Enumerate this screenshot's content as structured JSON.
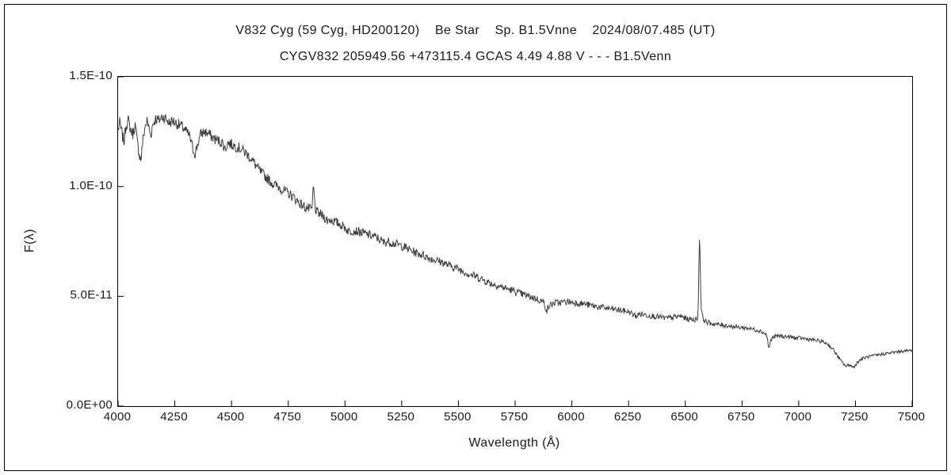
{
  "page": {
    "background": "#ffffff",
    "border_color": "#000000"
  },
  "chart_data": {
    "type": "line",
    "title": "V832 Cyg (59 Cyg, HD200120)    Be Star    Sp. B1.5Vnne    2024/08/07.485 (UT)",
    "subtitle": "CYGV832 205949.56 +473115.4 GCAS 4.49 4.88 V - - - B1.5Venn",
    "xlabel": "Wavelength (Å)",
    "ylabel": "F(λ)",
    "xlim": [
      4000,
      7500
    ],
    "ylim": [
      0,
      1.5e-10
    ],
    "grid": false,
    "legend": "none",
    "line_color": "#3d3d3d",
    "axis_color": "#000000",
    "flux_scale": 1e-11,
    "sample_step": 2.5,
    "noise": {
      "blue_amp": 0.28,
      "red_amp": 0.06
    },
    "x_ticks": [
      4000,
      4250,
      4500,
      4750,
      5000,
      5250,
      5500,
      5750,
      6000,
      6250,
      6500,
      6750,
      7000,
      7250,
      7500
    ],
    "y_ticks": [
      {
        "value": 0.0,
        "label": "0.0E+00"
      },
      {
        "value": 5e-11,
        "label": "5.0E-11"
      },
      {
        "value": 1e-10,
        "label": "1.0E-10"
      },
      {
        "value": 1.5e-10,
        "label": "1.5E-10"
      }
    ],
    "features": [
      {
        "wavelength": 4101,
        "kind": "absorption"
      },
      {
        "wavelength": 4340,
        "kind": "absorption"
      },
      {
        "wavelength": 4861,
        "kind": "emission"
      },
      {
        "wavelength": 5890,
        "kind": "absorption"
      },
      {
        "wavelength": 6563,
        "kind": "emission"
      },
      {
        "wavelength": 6868,
        "kind": "absorption"
      },
      {
        "wavelength": 7210,
        "kind": "absorption-band"
      }
    ],
    "series": [
      {
        "name": "spectrum",
        "points": [
          [
            4000,
            12.6
          ],
          [
            4008,
            12.9
          ],
          [
            4015,
            12.5
          ],
          [
            4022,
            12.2
          ],
          [
            4026,
            12.0
          ],
          [
            4034,
            12.8
          ],
          [
            4045,
            13.0
          ],
          [
            4055,
            12.6
          ],
          [
            4065,
            12.4
          ],
          [
            4075,
            12.8
          ],
          [
            4085,
            12.0
          ],
          [
            4095,
            11.4
          ],
          [
            4101,
            11.2
          ],
          [
            4108,
            12.0
          ],
          [
            4118,
            12.7
          ],
          [
            4128,
            13.0
          ],
          [
            4138,
            12.6
          ],
          [
            4144,
            12.3
          ],
          [
            4152,
            12.8
          ],
          [
            4165,
            13.1
          ],
          [
            4180,
            13.0
          ],
          [
            4195,
            13.2
          ],
          [
            4210,
            13.1
          ],
          [
            4225,
            12.9
          ],
          [
            4240,
            13.0
          ],
          [
            4255,
            12.9
          ],
          [
            4270,
            12.8
          ],
          [
            4285,
            12.7
          ],
          [
            4300,
            12.5
          ],
          [
            4315,
            12.3
          ],
          [
            4330,
            11.7
          ],
          [
            4340,
            11.5
          ],
          [
            4350,
            11.9
          ],
          [
            4365,
            12.4
          ],
          [
            4380,
            12.5
          ],
          [
            4400,
            12.4
          ],
          [
            4420,
            12.2
          ],
          [
            4440,
            12.1
          ],
          [
            4460,
            12.0
          ],
          [
            4471,
            11.7
          ],
          [
            4485,
            12.0
          ],
          [
            4505,
            11.9
          ],
          [
            4525,
            11.8
          ],
          [
            4545,
            11.7
          ],
          [
            4565,
            11.5
          ],
          [
            4585,
            11.3
          ],
          [
            4605,
            11.0
          ],
          [
            4625,
            10.7
          ],
          [
            4645,
            10.5
          ],
          [
            4665,
            10.3
          ],
          [
            4686,
            10.1
          ],
          [
            4705,
            10.0
          ],
          [
            4725,
            9.85
          ],
          [
            4750,
            9.7
          ],
          [
            4775,
            9.5
          ],
          [
            4800,
            9.25
          ],
          [
            4825,
            9.05
          ],
          [
            4850,
            8.95
          ],
          [
            4856,
            9.0
          ],
          [
            4859,
            9.9
          ],
          [
            4862,
            10.0
          ],
          [
            4866,
            9.3
          ],
          [
            4872,
            8.85
          ],
          [
            4890,
            8.75
          ],
          [
            4910,
            8.6
          ],
          [
            4922,
            8.45
          ],
          [
            4935,
            8.5
          ],
          [
            4955,
            8.4
          ],
          [
            4975,
            8.3
          ],
          [
            5000,
            8.15
          ],
          [
            5016,
            7.95
          ],
          [
            5035,
            8.0
          ],
          [
            5060,
            7.95
          ],
          [
            5090,
            7.85
          ],
          [
            5120,
            7.75
          ],
          [
            5145,
            7.65
          ],
          [
            5170,
            7.45
          ],
          [
            5190,
            7.5
          ],
          [
            5220,
            7.4
          ],
          [
            5250,
            7.3
          ],
          [
            5280,
            7.15
          ],
          [
            5310,
            7.0
          ],
          [
            5340,
            6.9
          ],
          [
            5370,
            6.75
          ],
          [
            5400,
            6.65
          ],
          [
            5430,
            6.55
          ],
          [
            5460,
            6.4
          ],
          [
            5490,
            6.3
          ],
          [
            5520,
            6.15
          ],
          [
            5550,
            6.0
          ],
          [
            5580,
            5.9
          ],
          [
            5610,
            5.75
          ],
          [
            5640,
            5.6
          ],
          [
            5670,
            5.5
          ],
          [
            5700,
            5.4
          ],
          [
            5730,
            5.3
          ],
          [
            5755,
            5.2
          ],
          [
            5780,
            5.1
          ],
          [
            5810,
            5.0
          ],
          [
            5840,
            4.9
          ],
          [
            5865,
            4.8
          ],
          [
            5878,
            4.7
          ],
          [
            5886,
            4.45
          ],
          [
            5891,
            4.35
          ],
          [
            5896,
            4.5
          ],
          [
            5905,
            4.6
          ],
          [
            5925,
            4.7
          ],
          [
            5950,
            4.72
          ],
          [
            5980,
            4.75
          ],
          [
            6010,
            4.72
          ],
          [
            6040,
            4.68
          ],
          [
            6070,
            4.62
          ],
          [
            6100,
            4.55
          ],
          [
            6130,
            4.5
          ],
          [
            6160,
            4.45
          ],
          [
            6190,
            4.4
          ],
          [
            6220,
            4.35
          ],
          [
            6250,
            4.3
          ],
          [
            6275,
            4.15
          ],
          [
            6285,
            4.1
          ],
          [
            6300,
            4.2
          ],
          [
            6330,
            4.15
          ],
          [
            6360,
            4.1
          ],
          [
            6390,
            4.05
          ],
          [
            6420,
            4.0
          ],
          [
            6450,
            4.05
          ],
          [
            6480,
            4.1
          ],
          [
            6500,
            4.0
          ],
          [
            6520,
            3.95
          ],
          [
            6540,
            3.95
          ],
          [
            6550,
            3.95
          ],
          [
            6556,
            4.1
          ],
          [
            6559,
            5.5
          ],
          [
            6561,
            7.55
          ],
          [
            6564,
            7.6
          ],
          [
            6567,
            5.8
          ],
          [
            6570,
            4.5
          ],
          [
            6576,
            4.05
          ],
          [
            6585,
            3.9
          ],
          [
            6600,
            3.8
          ],
          [
            6625,
            3.75
          ],
          [
            6650,
            3.7
          ],
          [
            6675,
            3.68
          ],
          [
            6700,
            3.65
          ],
          [
            6725,
            3.6
          ],
          [
            6750,
            3.58
          ],
          [
            6775,
            3.55
          ],
          [
            6800,
            3.5
          ],
          [
            6825,
            3.45
          ],
          [
            6845,
            3.35
          ],
          [
            6858,
            3.25
          ],
          [
            6863,
            3.0
          ],
          [
            6867,
            2.7
          ],
          [
            6870,
            2.65
          ],
          [
            6874,
            2.9
          ],
          [
            6880,
            3.05
          ],
          [
            6890,
            3.15
          ],
          [
            6910,
            3.2
          ],
          [
            6935,
            3.18
          ],
          [
            6960,
            3.15
          ],
          [
            6985,
            3.1
          ],
          [
            7010,
            3.1
          ],
          [
            7040,
            3.05
          ],
          [
            7070,
            3.0
          ],
          [
            7100,
            2.95
          ],
          [
            7125,
            2.85
          ],
          [
            7150,
            2.6
          ],
          [
            7170,
            2.3
          ],
          [
            7190,
            2.0
          ],
          [
            7210,
            1.8
          ],
          [
            7225,
            1.9
          ],
          [
            7240,
            1.75
          ],
          [
            7255,
            1.95
          ],
          [
            7270,
            2.1
          ],
          [
            7290,
            2.2
          ],
          [
            7310,
            2.25
          ],
          [
            7335,
            2.3
          ],
          [
            7360,
            2.35
          ],
          [
            7390,
            2.4
          ],
          [
            7420,
            2.45
          ],
          [
            7450,
            2.5
          ],
          [
            7480,
            2.52
          ],
          [
            7500,
            2.55
          ]
        ]
      }
    ]
  }
}
